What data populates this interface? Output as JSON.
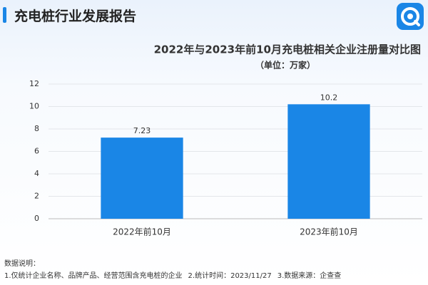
{
  "header": {
    "title": "充电桩行业发展报告"
  },
  "chart_data": {
    "type": "bar",
    "title": "2022年与2023年前10月充电桩相关企业注册量对比图",
    "subtitle": "（单位：万家）",
    "categories": [
      "2022年前10月",
      "2023年前10月"
    ],
    "values": [
      7.23,
      10.2
    ],
    "color": "#1a86e6",
    "ylim": [
      0,
      12
    ],
    "yticks": [
      0,
      2,
      4,
      6,
      8,
      10,
      12
    ],
    "grid": true
  },
  "notes": {
    "heading": "数据说明：",
    "items": [
      "1.仅统计企业名称、品牌产品、经营范围含充电桩的企业",
      "2.统计时间：2023/11/27",
      "3.数据来源：企查查"
    ]
  }
}
